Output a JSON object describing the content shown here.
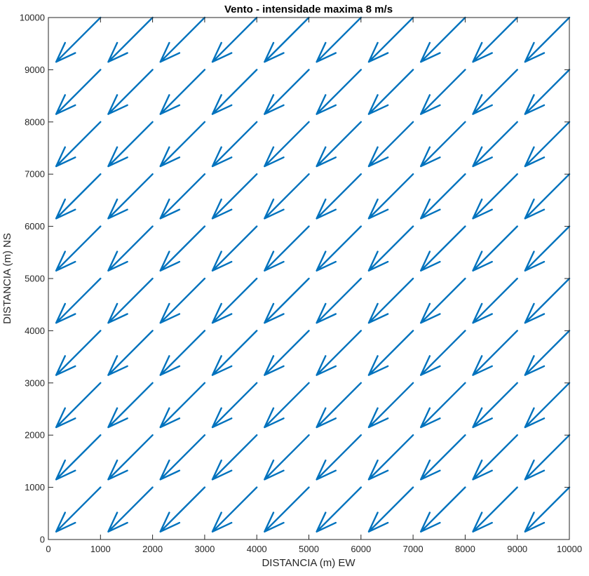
{
  "chart_data": {
    "type": "quiver",
    "title": "Vento - intensidade maxima 8 m/s",
    "xlabel": "DISTANCIA (m) EW",
    "ylabel": "DISTANCIA (m) NS",
    "xlim": [
      0,
      10000
    ],
    "ylim": [
      0,
      10000
    ],
    "xticks": [
      0,
      1000,
      2000,
      3000,
      4000,
      5000,
      6000,
      7000,
      8000,
      9000,
      10000
    ],
    "yticks": [
      0,
      1000,
      2000,
      3000,
      4000,
      5000,
      6000,
      7000,
      8000,
      9000,
      10000
    ],
    "grid": false,
    "box": true,
    "color": "#0072BD",
    "x": [
      1000,
      2000,
      3000,
      4000,
      5000,
      6000,
      7000,
      8000,
      9000,
      10000
    ],
    "y": [
      1000,
      2000,
      3000,
      4000,
      5000,
      6000,
      7000,
      8000,
      9000,
      10000
    ],
    "u": -850,
    "v": -850
  }
}
